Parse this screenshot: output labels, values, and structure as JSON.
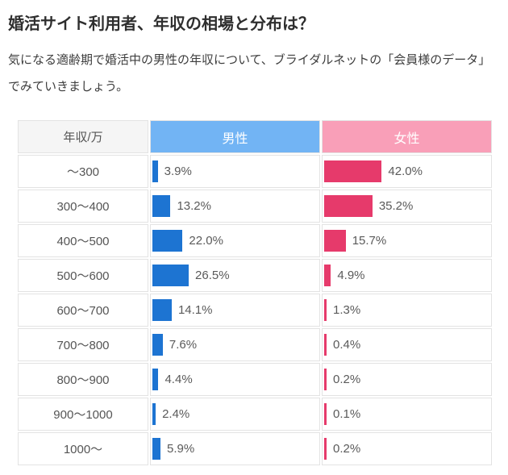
{
  "page": {
    "title": "婚活サイト利用者、年収の相場と分布は？",
    "subtitle": "気になる適齢期で婚活中の男性の年収について、ブライダルネットの「会員様のデータ」でみていきましょう。"
  },
  "table": {
    "columns": {
      "income": "年収/万",
      "male": "男性",
      "female": "女性"
    }
  },
  "colors": {
    "male_header_bg": "#72b4f4",
    "female_header_bg": "#f99fb8",
    "male_bar": "#1d74d2",
    "female_bar": "#e63a6b",
    "income_header_bg": "#f5f5f5",
    "cell_border": "#e3e3e3",
    "value_text": "#5a5a5a"
  },
  "chart_data": {
    "type": "bar",
    "orientation": "horizontal",
    "title": "婚活サイト利用者、年収の相場と分布は？",
    "ylabel": "年収/万",
    "value_unit": "%",
    "xlim": [
      0,
      50
    ],
    "grid": false,
    "legend_position": "column-headers",
    "categories": [
      "～300",
      "300～400",
      "400～500",
      "500～600",
      "600～700",
      "700～800",
      "800～900",
      "900～1000",
      "1000～"
    ],
    "series": [
      {
        "name": "男性",
        "color": "#1d74d2",
        "values": [
          3.9,
          13.2,
          22.0,
          26.5,
          14.1,
          7.6,
          4.4,
          2.4,
          5.9
        ],
        "labels": [
          "3.9%",
          "13.2%",
          "22.0%",
          "26.5%",
          "14.1%",
          "7.6%",
          "4.4%",
          "2.4%",
          "5.9%"
        ]
      },
      {
        "name": "女性",
        "color": "#e63a6b",
        "values": [
          42.0,
          35.2,
          15.7,
          4.9,
          1.3,
          0.4,
          0.2,
          0.1,
          0.2
        ],
        "labels": [
          "42.0%",
          "35.2%",
          "15.7%",
          "4.9%",
          "1.3%",
          "0.4%",
          "0.2%",
          "0.1%",
          "0.2%"
        ]
      }
    ]
  }
}
